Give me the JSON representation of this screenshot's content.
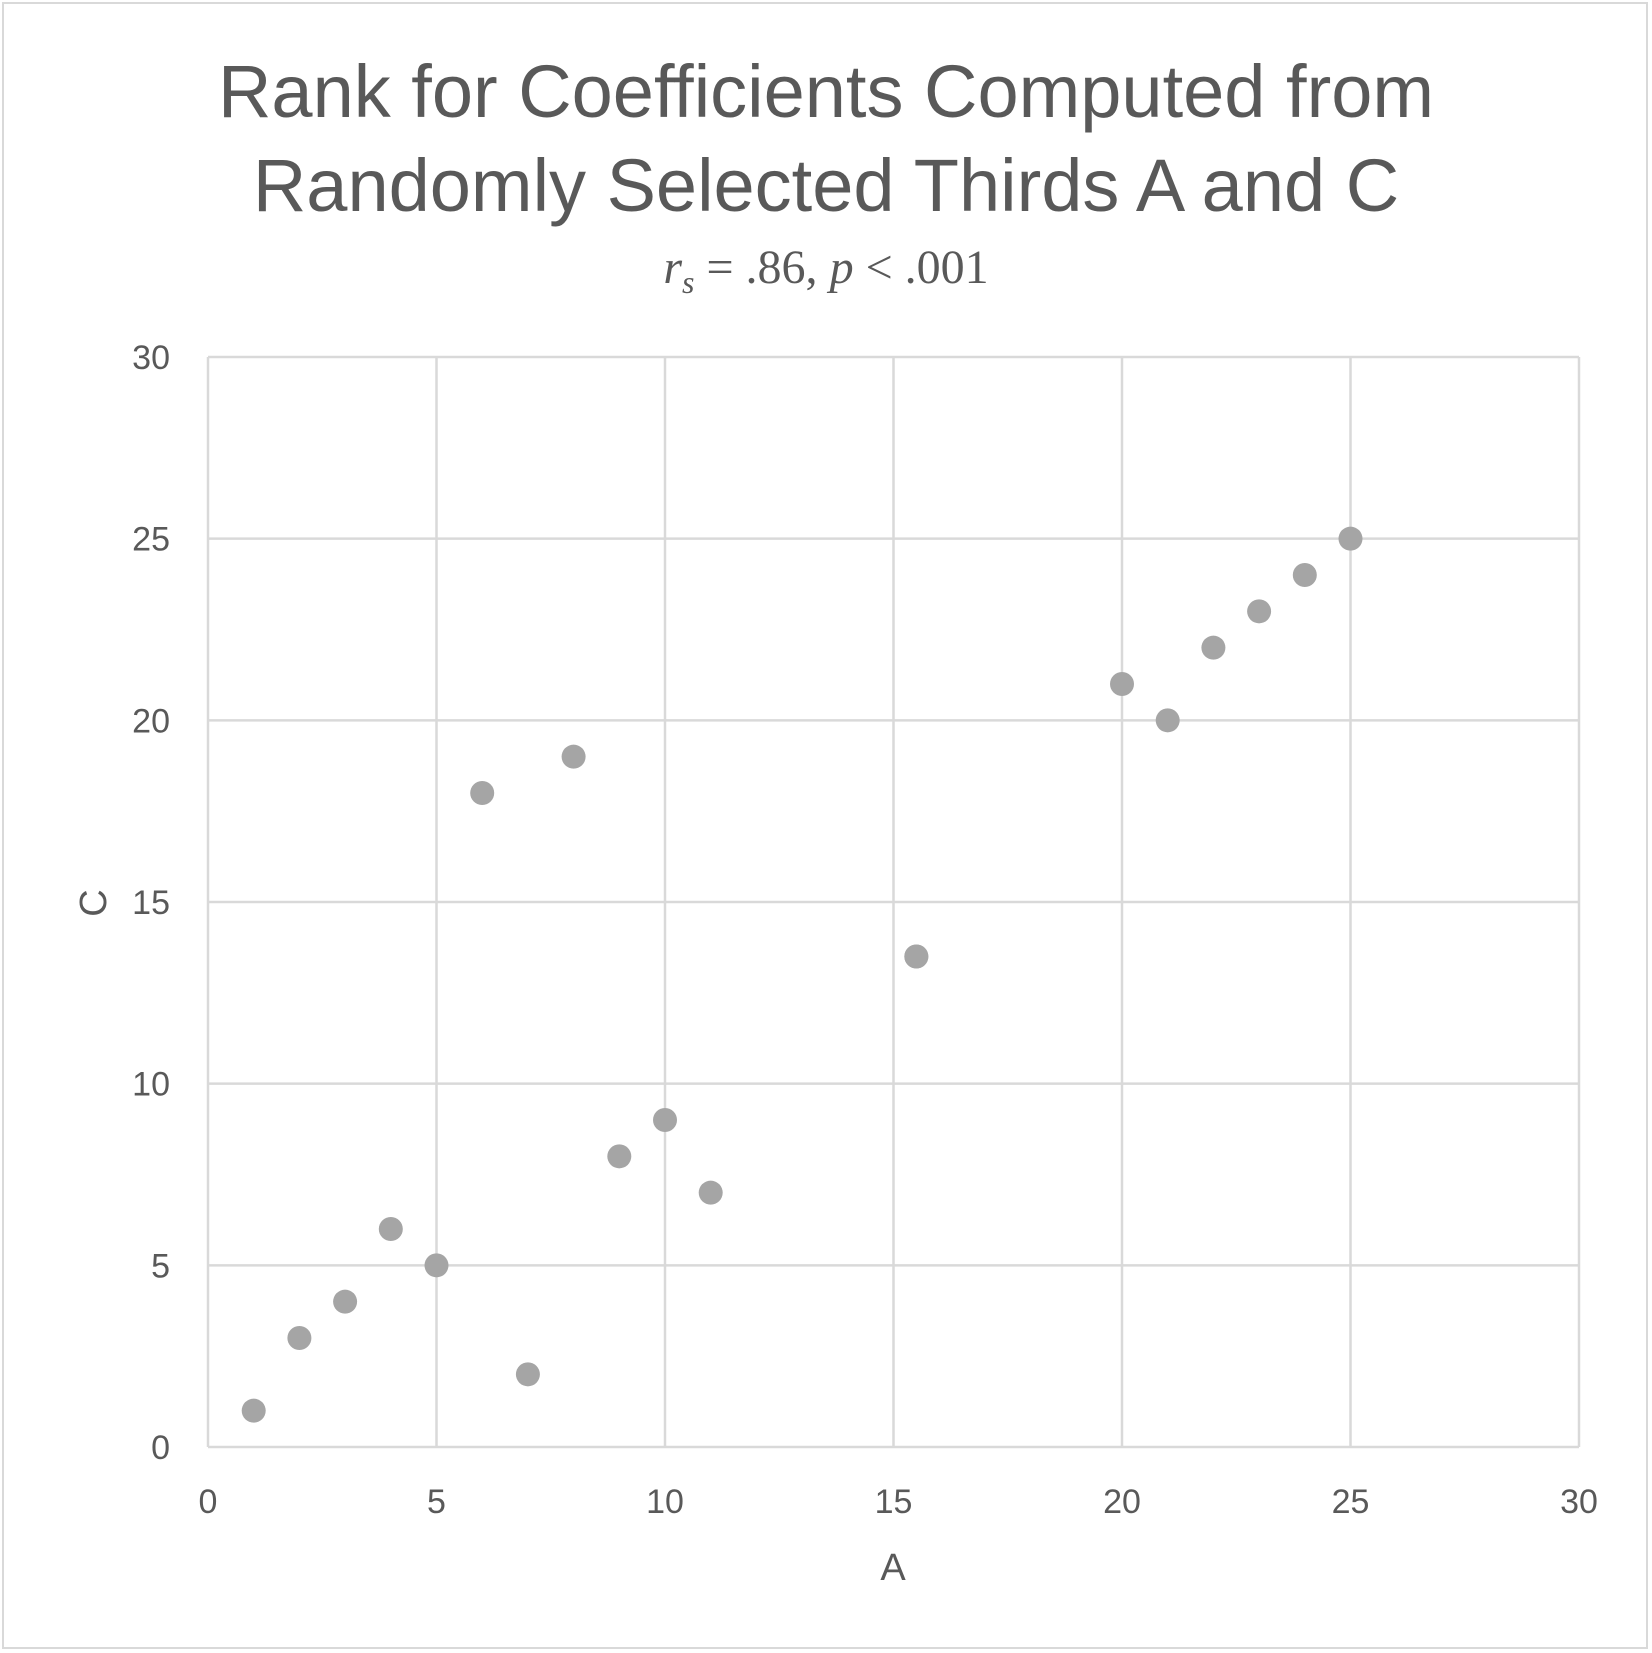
{
  "chart_data": {
    "type": "scatter",
    "title_lines": [
      "Rank for Coefficients Computed from",
      "Randomly Selected Thirds A and C"
    ],
    "subtitle": {
      "r": "r",
      "r_sub": "s",
      "eq": " = .86, ",
      "p": "p",
      "rest": " < .001"
    },
    "xlabel": "A",
    "ylabel": "C",
    "xlim": [
      0,
      30
    ],
    "ylim": [
      0,
      30
    ],
    "xticks": [
      0,
      5,
      10,
      15,
      20,
      25,
      30
    ],
    "yticks": [
      0,
      5,
      10,
      15,
      20,
      25,
      30
    ],
    "grid": true,
    "legend": "none",
    "marker_color": "#a5a5a5",
    "grid_color": "#d9d9d9",
    "points": [
      {
        "x": 1,
        "y": 1
      },
      {
        "x": 2,
        "y": 3
      },
      {
        "x": 3,
        "y": 4
      },
      {
        "x": 4,
        "y": 6
      },
      {
        "x": 5,
        "y": 5
      },
      {
        "x": 6,
        "y": 18
      },
      {
        "x": 7,
        "y": 2
      },
      {
        "x": 8,
        "y": 19
      },
      {
        "x": 9,
        "y": 8
      },
      {
        "x": 10,
        "y": 9
      },
      {
        "x": 11,
        "y": 7
      },
      {
        "x": 15.5,
        "y": 13.5
      },
      {
        "x": 15.5,
        "y": 13.5
      },
      {
        "x": 20,
        "y": 21
      },
      {
        "x": 21,
        "y": 20
      },
      {
        "x": 22,
        "y": 22
      },
      {
        "x": 23,
        "y": 23
      },
      {
        "x": 24,
        "y": 24
      },
      {
        "x": 25,
        "y": 25
      }
    ]
  }
}
